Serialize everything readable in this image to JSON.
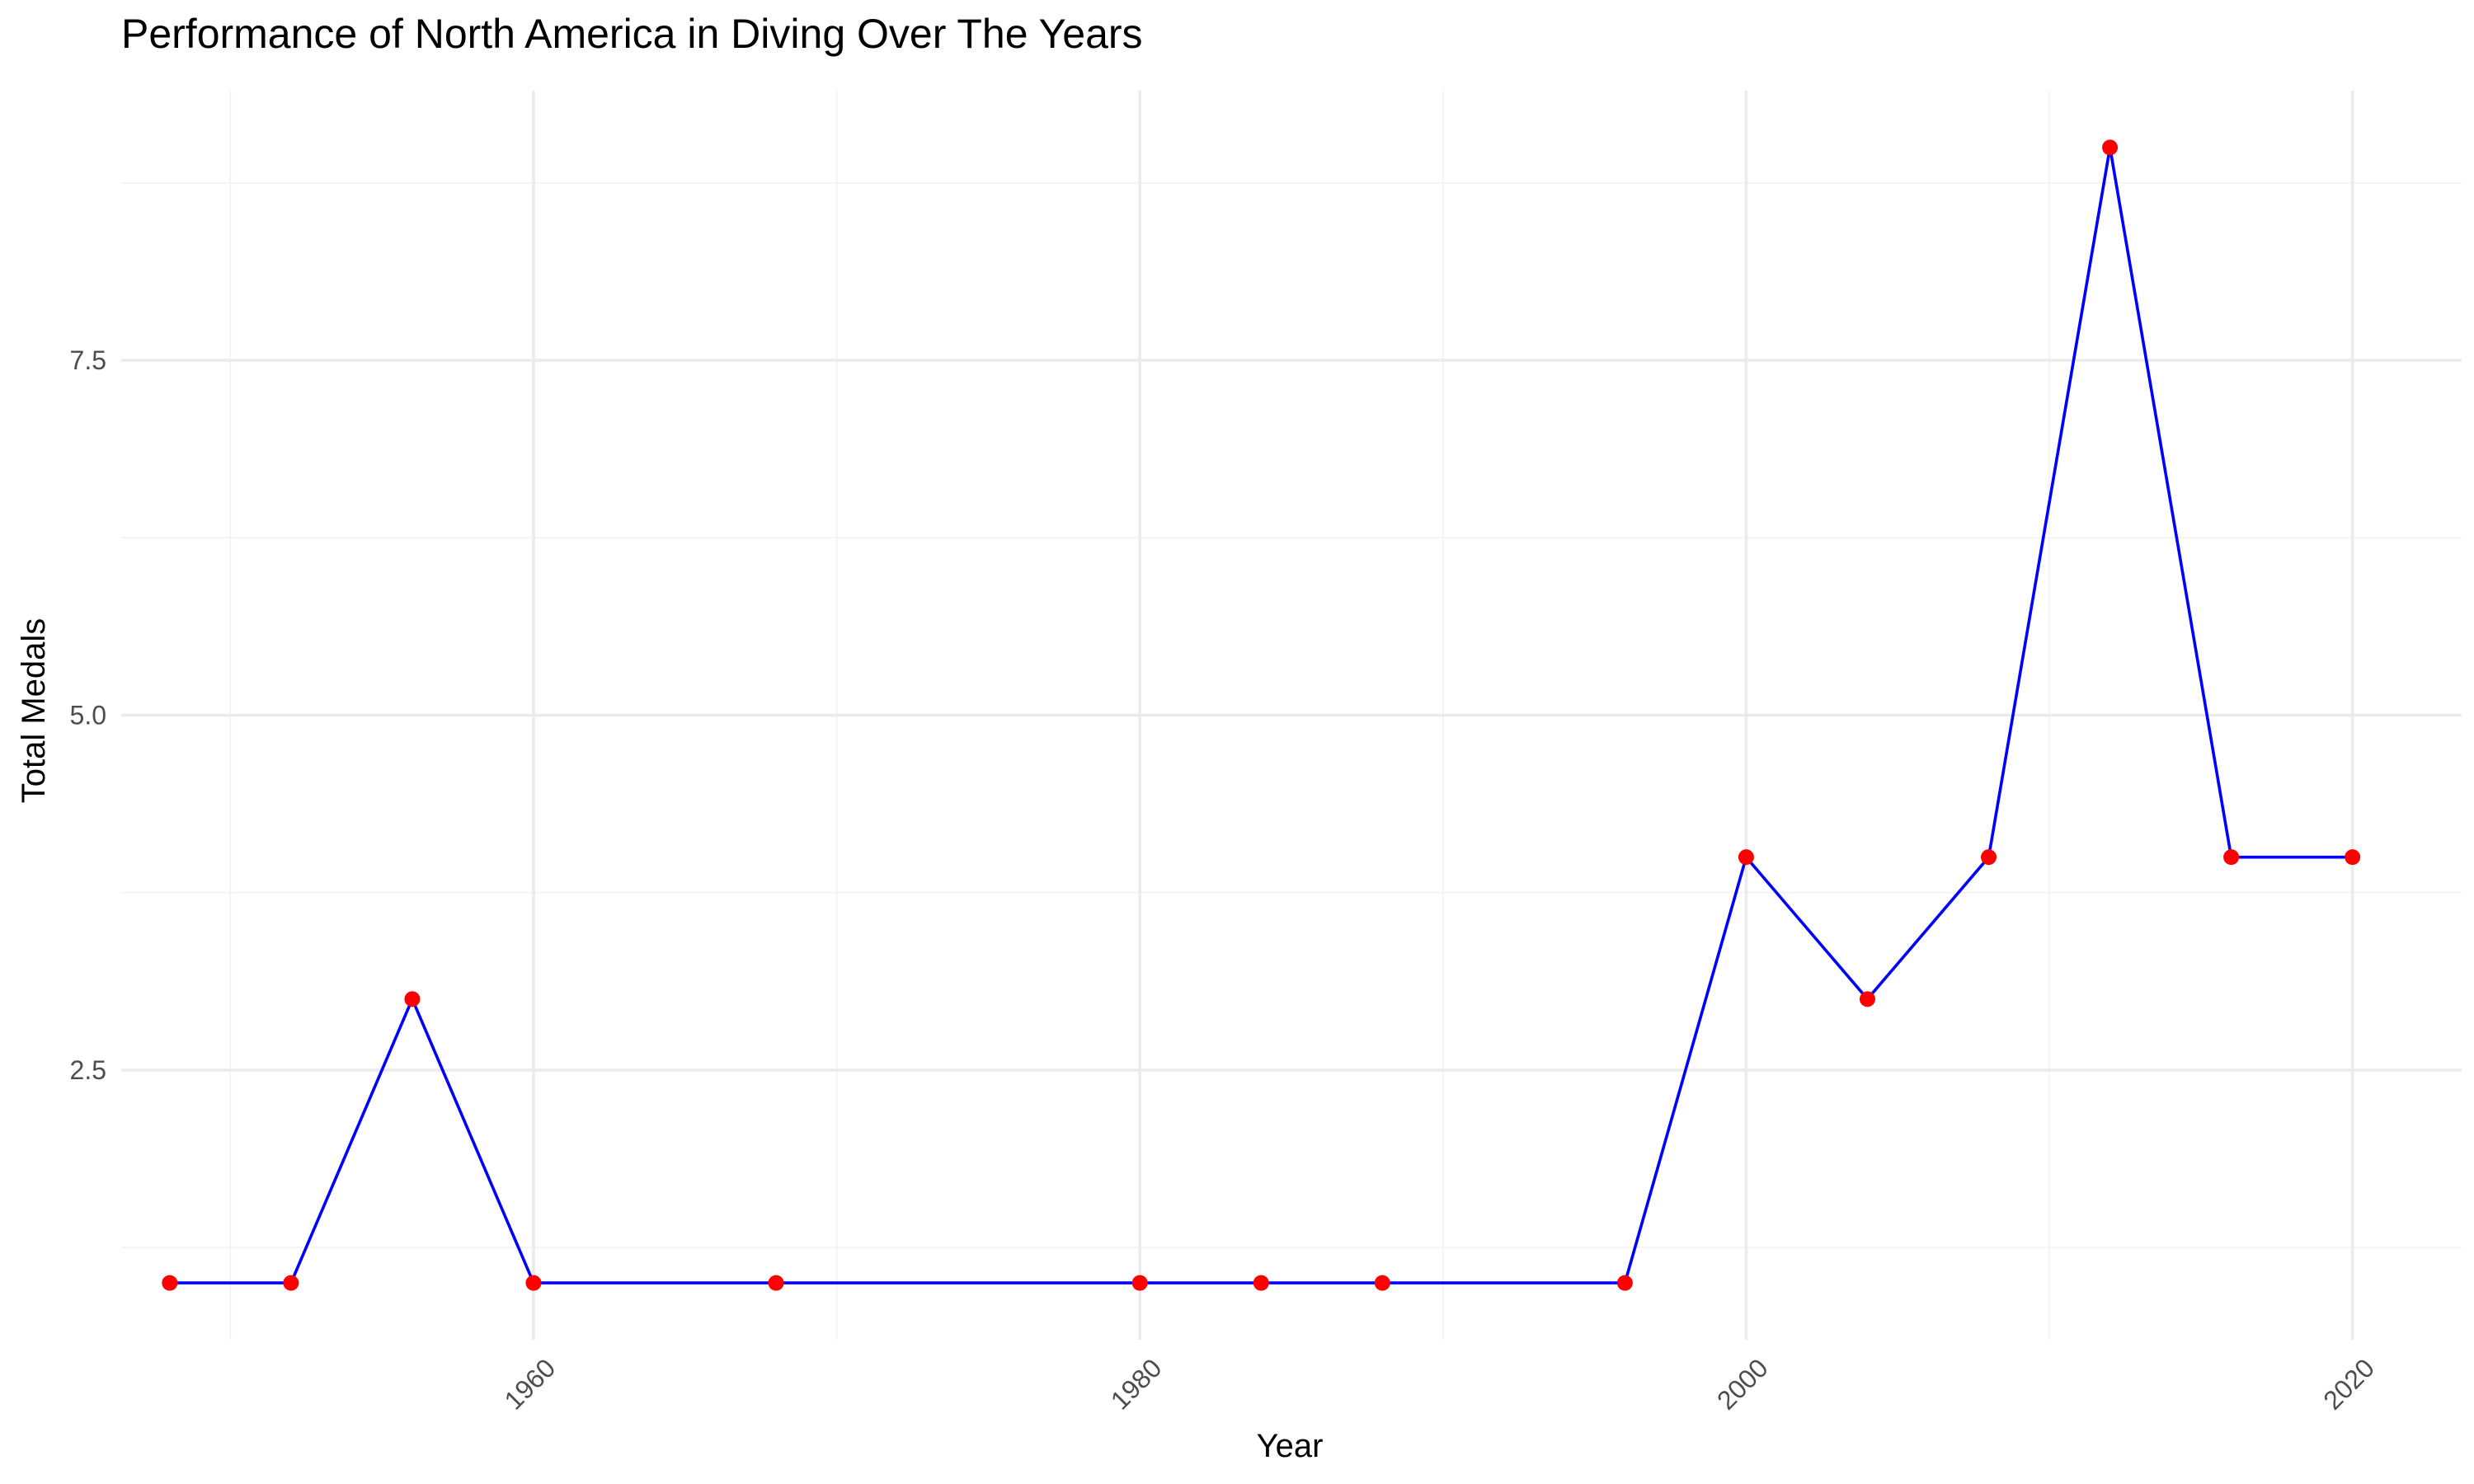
{
  "chart_data": {
    "type": "line",
    "title": "Performance of North America in Diving Over The Years",
    "xlabel": "Year",
    "ylabel": "Total Medals",
    "xlim": [
      1946.4,
      2023.6
    ],
    "ylim": [
      0.6,
      9.4
    ],
    "x_ticks": [
      1960,
      1980,
      2000,
      2020
    ],
    "y_ticks": [
      2.5,
      5.0,
      7.5
    ],
    "y_tick_labels": [
      "2.5",
      "5.0",
      "7.5"
    ],
    "x_minor": [
      1950,
      1970,
      1990,
      2010
    ],
    "y_minor": [
      1.25,
      3.75,
      6.25,
      8.75
    ],
    "grid": true,
    "line_color": "#0000ff",
    "point_color": "#ff0000",
    "x": [
      1948,
      1952,
      1956,
      1960,
      1968,
      1980,
      1984,
      1988,
      1996,
      2000,
      2004,
      2008,
      2012,
      2016,
      2020
    ],
    "y": [
      1,
      1,
      3,
      1,
      1,
      1,
      1,
      1,
      1,
      4,
      3,
      4,
      9,
      4,
      4
    ]
  }
}
